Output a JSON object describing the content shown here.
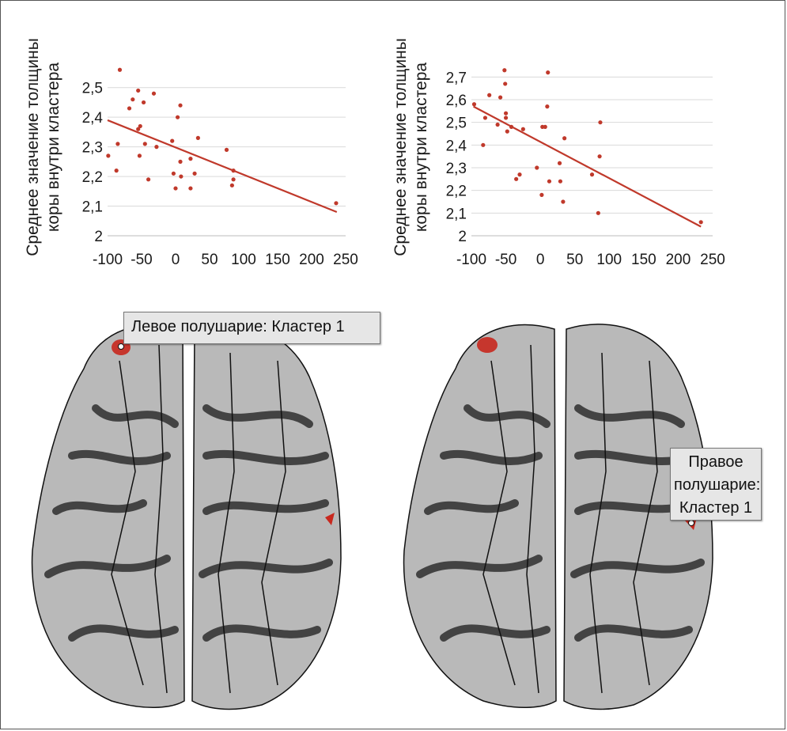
{
  "colors": {
    "accent_red": "#c0392b",
    "trend_line": "#c0392b",
    "grid": "#d9d9d9",
    "cortex_light": "#b9b9b9",
    "cortex_dark": "#2e2e2e",
    "cluster": "#c8281e"
  },
  "chart_data": [
    {
      "type": "scatter",
      "ylabel_line1": "Среднее значение толщины",
      "ylabel_line2": "коры внутри кластера",
      "xlim": [
        -100,
        250
      ],
      "ylim": [
        2,
        2.55
      ],
      "x_ticks": [
        "-100",
        "-50",
        "0",
        "50",
        "100",
        "150",
        "200",
        "250"
      ],
      "x_tick_values": [
        -100,
        -50,
        0,
        50,
        100,
        150,
        200,
        250
      ],
      "y_ticks": [
        "2",
        "2,1",
        "2,2",
        "2,3",
        "2,4",
        "2,5"
      ],
      "y_tick_values": [
        2,
        2.1,
        2.2,
        2.3,
        2.4,
        2.5
      ],
      "grid": true,
      "trend_line": {
        "x": [
          -100,
          237
        ],
        "y": [
          2.39,
          2.08
        ]
      },
      "points": [
        {
          "x": -99,
          "y": 2.27
        },
        {
          "x": -85,
          "y": 2.31
        },
        {
          "x": -82,
          "y": 2.56
        },
        {
          "x": -87,
          "y": 2.22
        },
        {
          "x": -68,
          "y": 2.43
        },
        {
          "x": -63,
          "y": 2.46
        },
        {
          "x": -55,
          "y": 2.49
        },
        {
          "x": -55,
          "y": 2.36
        },
        {
          "x": -52,
          "y": 2.37
        },
        {
          "x": -53,
          "y": 2.27
        },
        {
          "x": -47,
          "y": 2.45
        },
        {
          "x": -45,
          "y": 2.31
        },
        {
          "x": -40,
          "y": 2.19
        },
        {
          "x": -32,
          "y": 2.48
        },
        {
          "x": -28,
          "y": 2.3
        },
        {
          "x": -5,
          "y": 2.32
        },
        {
          "x": -3,
          "y": 2.21
        },
        {
          "x": 0,
          "y": 2.16
        },
        {
          "x": 3,
          "y": 2.4
        },
        {
          "x": 7,
          "y": 2.44
        },
        {
          "x": 7,
          "y": 2.25
        },
        {
          "x": 8,
          "y": 2.2
        },
        {
          "x": 22,
          "y": 2.26
        },
        {
          "x": 22,
          "y": 2.16
        },
        {
          "x": 28,
          "y": 2.21
        },
        {
          "x": 33,
          "y": 2.33
        },
        {
          "x": 75,
          "y": 2.29
        },
        {
          "x": 83,
          "y": 2.17
        },
        {
          "x": 85,
          "y": 2.19
        },
        {
          "x": 85,
          "y": 2.22
        },
        {
          "x": 236,
          "y": 2.11
        }
      ]
    },
    {
      "type": "scatter",
      "ylabel_line1": "Среднее значение толщины",
      "ylabel_line2": "коры внутри кластера",
      "xlim": [
        -100,
        250
      ],
      "ylim": [
        2,
        2.75
      ],
      "x_ticks": [
        "-100",
        "-50",
        "0",
        "50",
        "100",
        "150",
        "200",
        "250"
      ],
      "x_tick_values": [
        -100,
        -50,
        0,
        50,
        100,
        150,
        200,
        250
      ],
      "y_ticks": [
        "2",
        "2,1",
        "2,2",
        "2,3",
        "2,4",
        "2,5",
        "2,6",
        "2,7"
      ],
      "y_tick_values": [
        2,
        2.1,
        2.2,
        2.3,
        2.4,
        2.5,
        2.6,
        2.7
      ],
      "grid": true,
      "trend_line": {
        "x": [
          -97,
          233
        ],
        "y": [
          2.57,
          2.04
        ]
      },
      "points": [
        {
          "x": -96,
          "y": 2.58
        },
        {
          "x": -83,
          "y": 2.4
        },
        {
          "x": -80,
          "y": 2.52
        },
        {
          "x": -74,
          "y": 2.62
        },
        {
          "x": -62,
          "y": 2.49
        },
        {
          "x": -58,
          "y": 2.61
        },
        {
          "x": -52,
          "y": 2.73
        },
        {
          "x": -51,
          "y": 2.67
        },
        {
          "x": -50,
          "y": 2.54
        },
        {
          "x": -50,
          "y": 2.52
        },
        {
          "x": -48,
          "y": 2.46
        },
        {
          "x": -42,
          "y": 2.48
        },
        {
          "x": -35,
          "y": 2.25
        },
        {
          "x": -30,
          "y": 2.27
        },
        {
          "x": -25,
          "y": 2.47
        },
        {
          "x": -5,
          "y": 2.3
        },
        {
          "x": 2,
          "y": 2.18
        },
        {
          "x": 3,
          "y": 2.48
        },
        {
          "x": 7,
          "y": 2.48
        },
        {
          "x": 10,
          "y": 2.57
        },
        {
          "x": 11,
          "y": 2.72
        },
        {
          "x": 13,
          "y": 2.24
        },
        {
          "x": 28,
          "y": 2.32
        },
        {
          "x": 29,
          "y": 2.24
        },
        {
          "x": 33,
          "y": 2.15
        },
        {
          "x": 35,
          "y": 2.43
        },
        {
          "x": 75,
          "y": 2.27
        },
        {
          "x": 84,
          "y": 2.1
        },
        {
          "x": 86,
          "y": 2.35
        },
        {
          "x": 87,
          "y": 2.5
        },
        {
          "x": 233,
          "y": 2.06
        }
      ]
    }
  ],
  "brains": {
    "left": {
      "callout": "Левое полушарие: Кластер 1"
    },
    "right": {
      "callout_line1": "Правое",
      "callout_line2": "полушарие:",
      "callout_line3": "Кластер 1"
    }
  }
}
